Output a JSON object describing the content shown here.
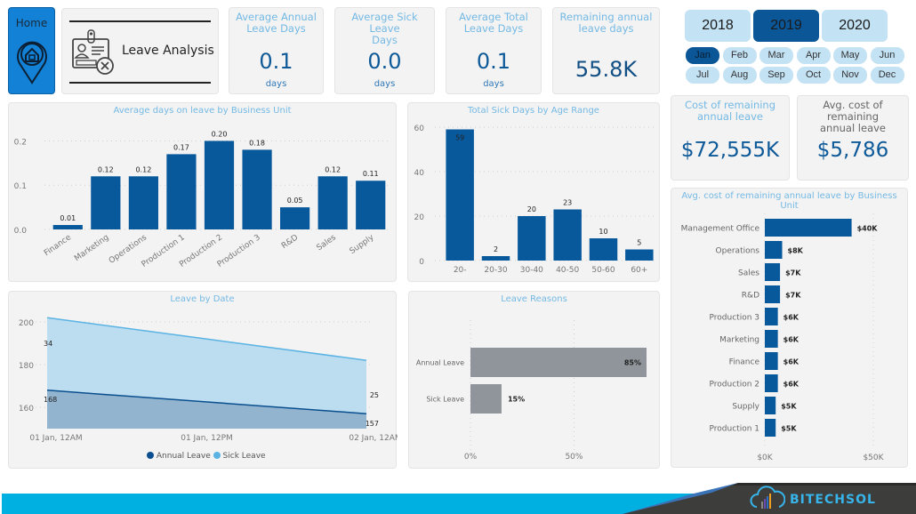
{
  "header": {
    "home_label": "Home",
    "page_title": "Leave Analysis"
  },
  "kpis": [
    {
      "title": "Average Annual Leave Days",
      "title_l1": "Average Annual",
      "title_l2": "Leave Days",
      "value": "0.1",
      "unit": "days"
    },
    {
      "title": "Average Sick Leave Days",
      "title_l1": "Average Sick Leave",
      "title_l2": "Days",
      "value": "0.0",
      "unit": "days"
    },
    {
      "title": "Average Total Leave Days",
      "title_l1": "Average Total",
      "title_l2": "Leave Days",
      "value": "0.1",
      "unit": "days"
    },
    {
      "title": "Remaining annual leave days",
      "title_l1": "Remaining annual",
      "title_l2": "leave days",
      "value": "55.8K"
    }
  ],
  "filters": {
    "years": [
      "2018",
      "2019",
      "2020"
    ],
    "selected_year": "2019",
    "months": [
      "Jan",
      "Feb",
      "Mar",
      "Apr",
      "May",
      "Jun",
      "Jul",
      "Aug",
      "Sep",
      "Oct",
      "Nov",
      "Dec"
    ],
    "selected_month": "Jan"
  },
  "cost_kpis": [
    {
      "title_l1": "Cost of remaining",
      "title_l2": "annual leave",
      "value": "$72,555K"
    },
    {
      "title_l1": "Avg. cost of remaining",
      "title_l2": "annual leave",
      "value": "$5,786"
    }
  ],
  "colors": {
    "bar": "#08599c",
    "title": "#74b9e4",
    "sick_area": "#bcdcef",
    "sick_line": "#5bb3e4",
    "annual_area": "#93b4cf",
    "annual_line": "#0a4f8f",
    "reason_bar": "#8f959b"
  },
  "chart_data": [
    {
      "type": "bar",
      "title": "Average days on leave by Business Unit",
      "categories": [
        "Finance",
        "Marketing",
        "Operations",
        "Production 1",
        "Production 2",
        "Production 3",
        "R&D",
        "Sales",
        "Supply"
      ],
      "values": [
        0.01,
        0.12,
        0.12,
        0.17,
        0.2,
        0.18,
        0.05,
        0.12,
        0.11
      ],
      "labels": [
        "0.01",
        "0.12",
        "0.12",
        "0.17",
        "0.20",
        "0.18",
        "0.05",
        "0.12",
        "0.11"
      ],
      "yticks": [
        "0.0",
        "0.1",
        "0.2"
      ],
      "ytick_values": [
        0,
        0.1,
        0.2
      ],
      "ylim": [
        0,
        0.225
      ],
      "xlabel": "",
      "ylabel": "",
      "grid": true
    },
    {
      "type": "bar",
      "title": "Total Sick Days by Age Range",
      "categories": [
        "20-",
        "20-30",
        "30-40",
        "40-50",
        "50-60",
        "60+"
      ],
      "values": [
        59,
        2,
        20,
        23,
        10,
        5
      ],
      "labels": [
        "59",
        "2",
        "20",
        "23",
        "10",
        "5"
      ],
      "yticks": [
        "0",
        "20",
        "40",
        "60"
      ],
      "ytick_values": [
        0,
        20,
        40,
        60
      ],
      "ylim": [
        0,
        60
      ],
      "xlabel": "",
      "ylabel": "",
      "grid": true
    },
    {
      "type": "bar",
      "orientation": "horizontal",
      "title": "Avg. cost of remaining annual leave by Business Unit",
      "categories": [
        "Management Office",
        "Operations",
        "Sales",
        "R&D",
        "Production 3",
        "Marketing",
        "Finance",
        "Production 2",
        "Supply",
        "Production 1"
      ],
      "values": [
        40,
        8,
        7,
        7,
        6,
        6,
        6,
        6,
        5,
        5
      ],
      "labels": [
        "$40K",
        "$8K",
        "$7K",
        "$7K",
        "$6K",
        "$6K",
        "$6K",
        "$6K",
        "$5K",
        "$5K"
      ],
      "xticks": [
        "$0K",
        "$50K"
      ],
      "xtick_values": [
        0,
        50
      ],
      "xlim": [
        0,
        50
      ],
      "unit": "$K",
      "grid": true
    },
    {
      "type": "area",
      "stacked": true,
      "title": "Leave by Date",
      "x": [
        "01 Jan, 12AM",
        "02 Jan, 12AM"
      ],
      "xticks": [
        "01 Jan, 12AM",
        "01 Jan, 12PM",
        "02 Jan, 12AM"
      ],
      "series": [
        {
          "name": "Annual Leave",
          "values": [
            168,
            157
          ]
        },
        {
          "name": "Sick Leave",
          "values": [
            34,
            25
          ]
        }
      ],
      "yticks": [
        "160",
        "180",
        "200"
      ],
      "ytick_values": [
        160,
        180,
        200
      ],
      "ylim": [
        150,
        205
      ],
      "legend": "bottom",
      "legend_entries": [
        "Annual Leave",
        "Sick Leave"
      ],
      "grid": true
    },
    {
      "type": "bar",
      "orientation": "horizontal",
      "title": "Leave Reasons",
      "categories": [
        "Annual Leave",
        "Sick Leave"
      ],
      "values": [
        85,
        15
      ],
      "labels": [
        "85%",
        "15%"
      ],
      "xticks": [
        "0%",
        "50%"
      ],
      "xtick_values": [
        0,
        50
      ],
      "xlim": [
        0,
        85
      ],
      "grid": true
    }
  ],
  "footer": {
    "brand": "BITECHSOL"
  }
}
